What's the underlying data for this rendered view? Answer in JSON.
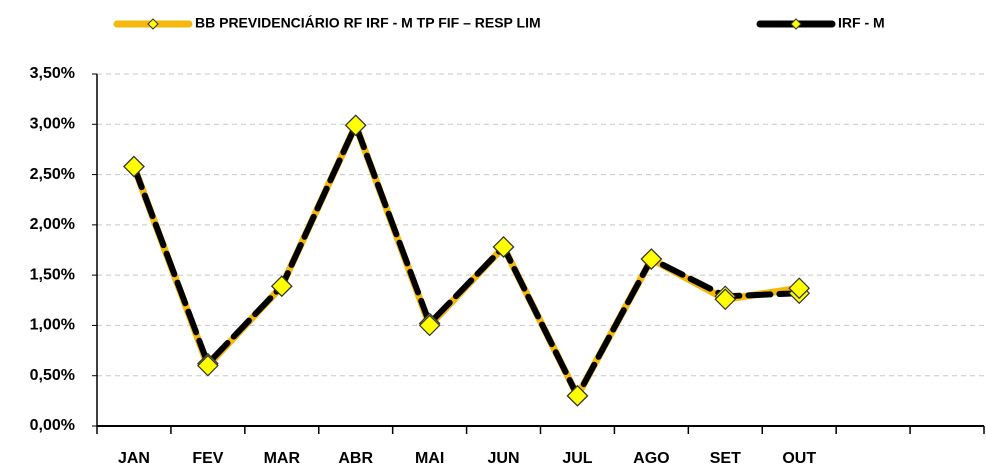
{
  "chart_data": {
    "type": "line",
    "categories": [
      "JAN",
      "FEV",
      "MAR",
      "ABR",
      "MAI",
      "JUN",
      "JUL",
      "AGO",
      "SET",
      "OUT",
      null,
      null
    ],
    "series": [
      {
        "name": "BB PREVIDENCIÁRIO RF IRF - M TP FIF – RESP LIM",
        "color": "#f7b80c",
        "values": [
          2.58,
          0.6,
          1.39,
          2.99,
          1.0,
          1.78,
          0.3,
          1.66,
          1.26,
          1.37,
          null,
          null
        ]
      },
      {
        "name": "IRF - M",
        "color": "#000000",
        "values": [
          2.58,
          0.62,
          1.39,
          2.99,
          1.02,
          1.78,
          0.3,
          1.66,
          1.29,
          1.32,
          null,
          null
        ]
      }
    ],
    "marker_color": "#ffff00",
    "ylim": [
      0,
      3.5
    ],
    "yticks": [
      {
        "value": 0,
        "label": "0,00%"
      },
      {
        "value": 0.5,
        "label": "0,50%"
      },
      {
        "value": 1,
        "label": "1,00%"
      },
      {
        "value": 1.5,
        "label": "1,50%"
      },
      {
        "value": 2,
        "label": "2,00%"
      },
      {
        "value": 2.5,
        "label": "2,50%"
      },
      {
        "value": 3,
        "label": "3,00%"
      },
      {
        "value": 3.5,
        "label": "3,50%"
      }
    ],
    "grid": true
  }
}
